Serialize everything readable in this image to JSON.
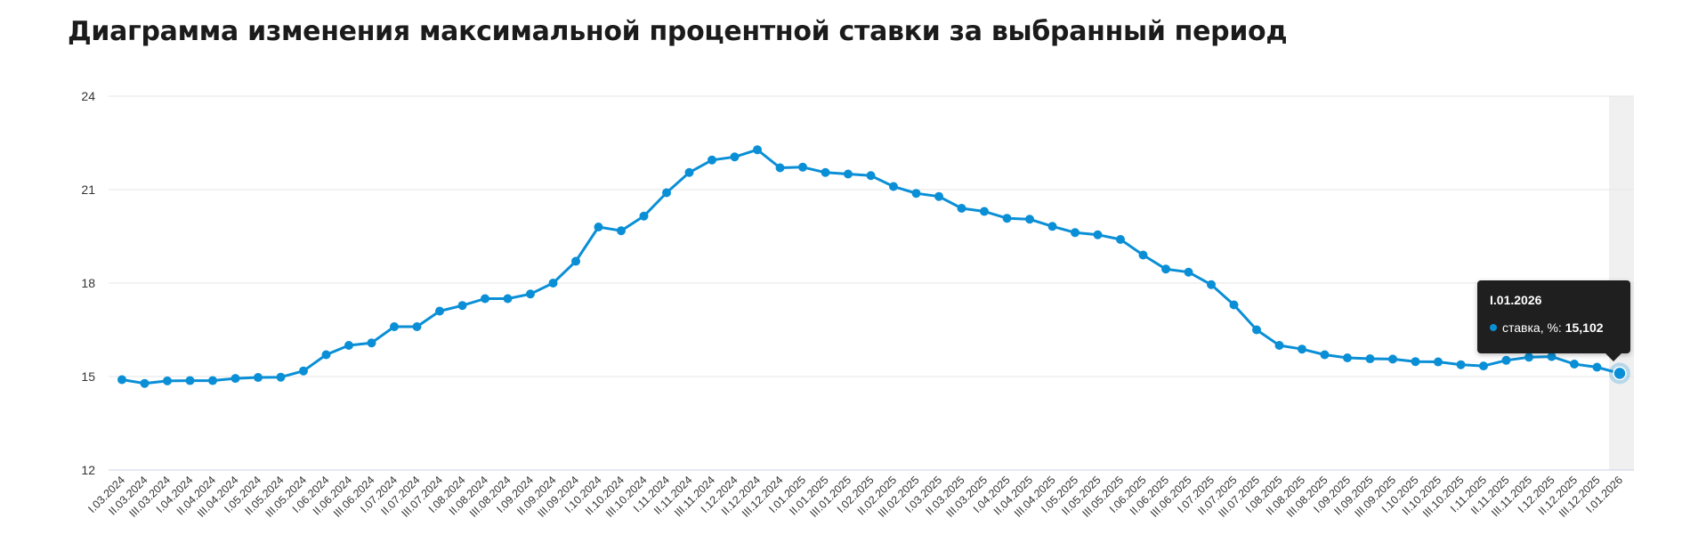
{
  "title": "Диаграмма изменения максимальной процентной ставки за выбранный период",
  "chart_data": {
    "type": "line",
    "xlabel": "",
    "ylabel": "",
    "ylim": [
      12,
      24
    ],
    "yticks": [
      "24",
      "21",
      "18",
      "15",
      "12"
    ],
    "grid": true,
    "series_color": "#0a8fd6",
    "highlight_band_color": "#f0f0f0",
    "categories": [
      "I.03.2024",
      "II.03.2024",
      "III.03.2024",
      "I.04.2024",
      "II.04.2024",
      "III.04.2024",
      "I.05.2024",
      "II.05.2024",
      "III.05.2024",
      "I.06.2024",
      "II.06.2024",
      "III.06.2024",
      "I.07.2024",
      "II.07.2024",
      "III.07.2024",
      "I.08.2024",
      "II.08.2024",
      "III.08.2024",
      "I.09.2024",
      "II.09.2024",
      "III.09.2024",
      "I.10.2024",
      "II.10.2024",
      "III.10.2024",
      "I.11.2024",
      "II.11.2024",
      "III.11.2024",
      "I.12.2024",
      "II.12.2024",
      "III.12.2024",
      "I.01.2025",
      "II.01.2025",
      "III.01.2025",
      "I.02.2025",
      "II.02.2025",
      "III.02.2025",
      "I.03.2025",
      "II.03.2025",
      "III.03.2025",
      "I.04.2025",
      "II.04.2025",
      "III.04.2025",
      "I.05.2025",
      "II.05.2025",
      "III.05.2025",
      "I.06.2025",
      "II.06.2025",
      "III.06.2025",
      "I.07.2025",
      "II.07.2025",
      "III.07.2025",
      "I.08.2025",
      "II.08.2025",
      "III.08.2025",
      "I.09.2025",
      "II.09.2025",
      "III.09.2025",
      "I.10.2025",
      "II.10.2025",
      "III.10.2025",
      "I.11.2025",
      "II.11.2025",
      "III.11.2025",
      "I.12.2025",
      "II.12.2025",
      "III.12.2025",
      "I.01.2026"
    ],
    "series": [
      {
        "name": "ставка, %",
        "values": [
          14.9,
          14.78,
          14.86,
          14.87,
          14.87,
          14.94,
          14.97,
          14.98,
          15.18,
          15.7,
          16.0,
          16.08,
          16.6,
          16.6,
          17.1,
          17.28,
          17.5,
          17.5,
          17.65,
          18.0,
          18.7,
          19.8,
          19.68,
          20.15,
          20.9,
          21.55,
          21.95,
          22.05,
          22.28,
          21.7,
          21.72,
          21.55,
          21.5,
          21.45,
          21.1,
          20.88,
          20.78,
          20.4,
          20.3,
          20.08,
          20.05,
          19.82,
          19.62,
          19.55,
          19.4,
          18.9,
          18.45,
          18.35,
          17.95,
          17.3,
          16.5,
          16.0,
          15.88,
          15.7,
          15.6,
          15.57,
          15.56,
          15.48,
          15.47,
          15.38,
          15.34,
          15.52,
          15.62,
          15.64,
          15.4,
          15.3,
          15.102
        ]
      }
    ],
    "highlighted_index": 66
  },
  "tooltip": {
    "title": "I.01.2026",
    "series_label": "ставка, %:",
    "value": "15,102"
  }
}
